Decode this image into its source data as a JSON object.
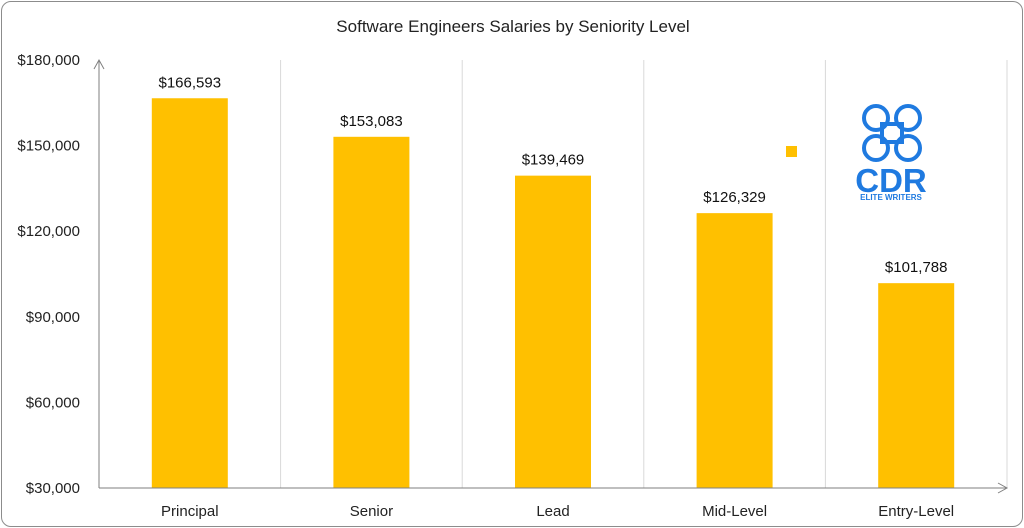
{
  "chart_data": {
    "type": "bar",
    "title": "Software Engineers Salaries by Seniority Level",
    "xlabel": "",
    "ylabel": "",
    "categories": [
      "Principal",
      "Senior",
      "Lead",
      "Mid-Level",
      "Entry-Level"
    ],
    "values": [
      166593,
      153083,
      139469,
      126329,
      101788
    ],
    "data_labels": [
      "$166,593",
      "$153,083",
      "$139,469",
      "$126,329",
      "$101,788"
    ],
    "ylim": [
      30000,
      180000
    ],
    "yticks": [
      30000,
      60000,
      90000,
      120000,
      150000,
      180000
    ],
    "ytick_labels": [
      "$30,000",
      "$60,000",
      "$90,000",
      "$120,000",
      "$150,000",
      "$180,000"
    ],
    "bar_color": "#FFC000",
    "grid": "vertical",
    "legend": "none"
  },
  "logo": {
    "text": "CDR",
    "subtitle": "ELITE WRITERS",
    "color": "#1f7ae0"
  }
}
